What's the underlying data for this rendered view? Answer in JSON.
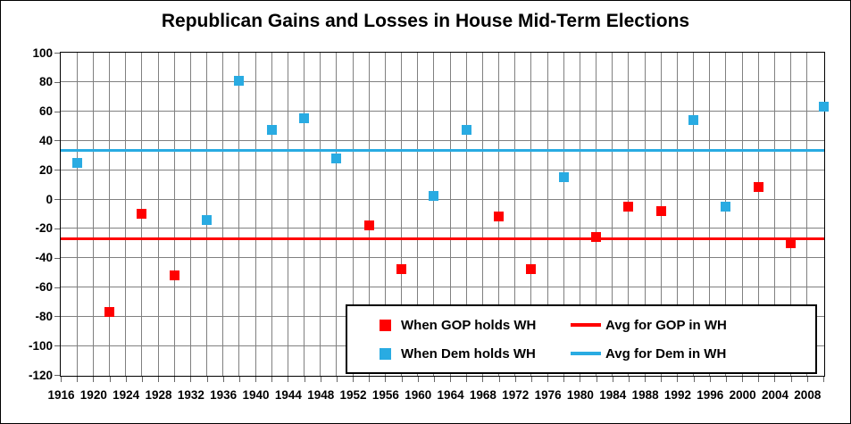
{
  "title": "Republican Gains and Losses in House Mid-Term Elections",
  "colors": {
    "gop": "#FF0000",
    "dem": "#29ABE2",
    "gridline": "#808080",
    "tick": "#666666",
    "text": "#000000",
    "plot_border": "#000000",
    "background": "#FFFFFF"
  },
  "legend": {
    "gop_points_label": "When GOP holds WH",
    "dem_points_label": "When Dem holds WH",
    "gop_avg_label": "Avg for GOP in WH",
    "dem_avg_label": "Avg for Dem in WH"
  },
  "chart_data": {
    "type": "scatter",
    "title": "Republican Gains and Losses in House Mid-Term Elections",
    "xlabel": "",
    "ylabel": "",
    "grid": true,
    "legend_position": "inside-bottom-right",
    "x_axis": {
      "min": 1916,
      "max": 2010,
      "label_step": 4,
      "gridline_step": 2,
      "tick_labels": [
        1916,
        1920,
        1924,
        1928,
        1932,
        1936,
        1940,
        1944,
        1948,
        1952,
        1956,
        1960,
        1964,
        1968,
        1972,
        1976,
        1980,
        1984,
        1988,
        1992,
        1996,
        2000,
        2004,
        2008
      ]
    },
    "y_axis": {
      "min": -120,
      "max": 100,
      "step": 20,
      "tick_labels": [
        100,
        80,
        60,
        40,
        20,
        0,
        -20,
        -40,
        -60,
        -80,
        -100,
        -120
      ]
    },
    "series": [
      {
        "name": "When GOP holds WH",
        "color_key": "gop",
        "marker": "square",
        "points": [
          {
            "x": 1922,
            "y": -77
          },
          {
            "x": 1926,
            "y": -10
          },
          {
            "x": 1930,
            "y": -52
          },
          {
            "x": 1954,
            "y": -18
          },
          {
            "x": 1958,
            "y": -48
          },
          {
            "x": 1970,
            "y": -12
          },
          {
            "x": 1974,
            "y": -48
          },
          {
            "x": 1982,
            "y": -26
          },
          {
            "x": 1986,
            "y": -5
          },
          {
            "x": 1990,
            "y": -8
          },
          {
            "x": 2002,
            "y": 8
          },
          {
            "x": 2006,
            "y": -30
          }
        ]
      },
      {
        "name": "When Dem holds WH",
        "color_key": "dem",
        "marker": "square",
        "points": [
          {
            "x": 1918,
            "y": 25
          },
          {
            "x": 1934,
            "y": -14
          },
          {
            "x": 1938,
            "y": 81
          },
          {
            "x": 1942,
            "y": 47
          },
          {
            "x": 1946,
            "y": 55
          },
          {
            "x": 1950,
            "y": 28
          },
          {
            "x": 1962,
            "y": 2
          },
          {
            "x": 1966,
            "y": 47
          },
          {
            "x": 1978,
            "y": 15
          },
          {
            "x": 1994,
            "y": 54
          },
          {
            "x": 1998,
            "y": -5
          },
          {
            "x": 2010,
            "y": 63
          }
        ]
      }
    ],
    "avg_lines": [
      {
        "name": "Avg for GOP in WH",
        "value": -27.2,
        "color_key": "gop"
      },
      {
        "name": "Avg for Dem in WH",
        "value": 33.2,
        "color_key": "dem"
      }
    ]
  }
}
